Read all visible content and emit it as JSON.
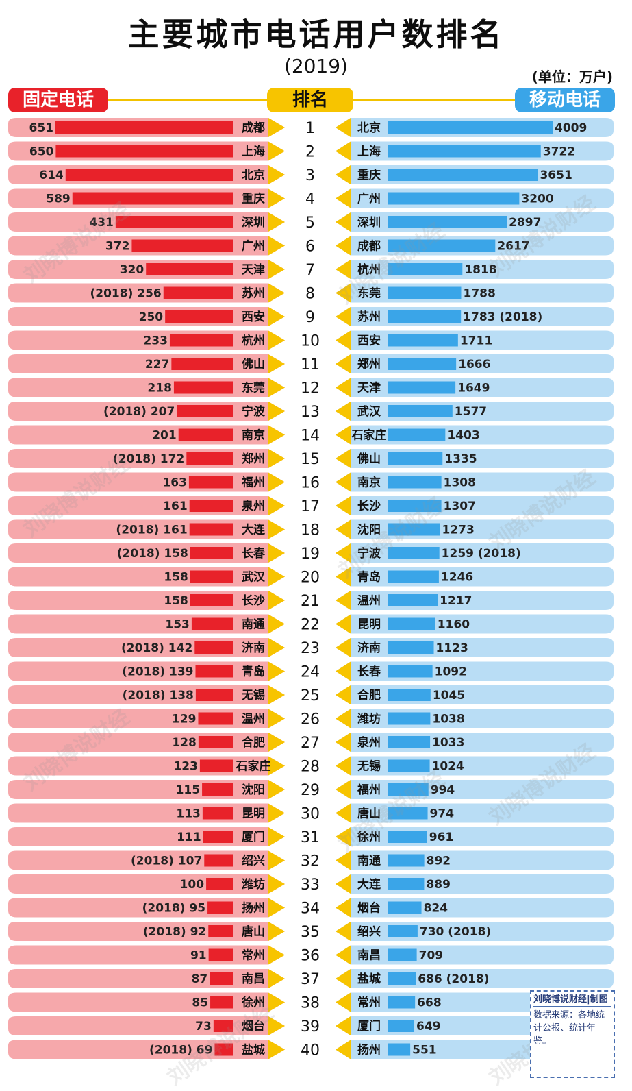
{
  "header": {
    "title": "主要城市电话用户数排名",
    "year": "(2019)",
    "unit": "(单位：万户)",
    "left_label": "固定电话",
    "mid_label": "排名",
    "right_label": "移动电话"
  },
  "colors": {
    "fixed_bar": "#e8222a",
    "fixed_row": "#f6a8ab",
    "mobile_bar": "#3aa5e8",
    "mobile_row": "#b9ddf5",
    "arrow": "#f7c400"
  },
  "watermark": "刘晓博说财经",
  "source": {
    "brand": "刘晓博说财经|制图",
    "text": "数据来源：各地统计公报、统计年鉴。"
  },
  "chart_data": {
    "type": "bar",
    "ranks": [
      1,
      2,
      3,
      4,
      5,
      6,
      7,
      8,
      9,
      10,
      11,
      12,
      13,
      14,
      15,
      16,
      17,
      18,
      19,
      20,
      21,
      22,
      23,
      24,
      25,
      26,
      27,
      28,
      29,
      30,
      31,
      32,
      33,
      34,
      35,
      36,
      37,
      38,
      39,
      40
    ],
    "series": [
      {
        "name": "固定电话",
        "cities": [
          "成都",
          "上海",
          "北京",
          "重庆",
          "深圳",
          "广州",
          "天津",
          "苏州",
          "西安",
          "杭州",
          "佛山",
          "东莞",
          "宁波",
          "南京",
          "郑州",
          "福州",
          "泉州",
          "大连",
          "长春",
          "武汉",
          "长沙",
          "南通",
          "济南",
          "青岛",
          "无锡",
          "温州",
          "合肥",
          "石家庄",
          "沈阳",
          "昆明",
          "厦门",
          "绍兴",
          "潍坊",
          "扬州",
          "唐山",
          "常州",
          "南昌",
          "徐州",
          "烟台",
          "盐城"
        ],
        "values": [
          651,
          650,
          614,
          589,
          431,
          372,
          320,
          256,
          250,
          233,
          227,
          218,
          207,
          201,
          172,
          163,
          161,
          161,
          158,
          158,
          158,
          153,
          142,
          139,
          138,
          129,
          128,
          123,
          115,
          113,
          111,
          107,
          100,
          95,
          92,
          91,
          87,
          85,
          73,
          69
        ],
        "labels": [
          "651",
          "650",
          "614",
          "589",
          "431",
          "372",
          "320",
          "(2018) 256",
          "250",
          "233",
          "227",
          "218",
          "(2018) 207",
          "201",
          "(2018) 172",
          "163",
          "161",
          "(2018) 161",
          "(2018) 158",
          "158",
          "158",
          "153",
          "(2018) 142",
          "(2018) 139",
          "(2018) 138",
          "129",
          "128",
          "123",
          "115",
          "113",
          "111",
          "(2018) 107",
          "100",
          "(2018) 95",
          "(2018) 92",
          "91",
          "87",
          "85",
          "73",
          "(2018) 69"
        ]
      },
      {
        "name": "移动电话",
        "cities": [
          "北京",
          "上海",
          "重庆",
          "广州",
          "深圳",
          "成都",
          "杭州",
          "东莞",
          "苏州",
          "西安",
          "郑州",
          "天津",
          "武汉",
          "石家庄",
          "佛山",
          "南京",
          "长沙",
          "沈阳",
          "宁波",
          "青岛",
          "温州",
          "昆明",
          "济南",
          "长春",
          "合肥",
          "潍坊",
          "泉州",
          "无锡",
          "福州",
          "唐山",
          "徐州",
          "南通",
          "大连",
          "烟台",
          "绍兴",
          "南昌",
          "盐城",
          "常州",
          "厦门",
          "扬州"
        ],
        "values": [
          4009,
          3722,
          3651,
          3200,
          2897,
          2617,
          1818,
          1788,
          1783,
          1711,
          1666,
          1649,
          1577,
          1403,
          1335,
          1308,
          1307,
          1273,
          1259,
          1246,
          1217,
          1160,
          1123,
          1092,
          1045,
          1038,
          1033,
          1024,
          994,
          974,
          961,
          892,
          889,
          824,
          730,
          709,
          686,
          668,
          649,
          551
        ],
        "labels": [
          "4009",
          "3722",
          "3651",
          "3200",
          "2897",
          "2617",
          "1818",
          "1788",
          "1783 (2018)",
          "1711",
          "1666",
          "1649",
          "1577",
          "1403",
          "1335",
          "1308",
          "1307",
          "1273",
          "1259 (2018)",
          "1246",
          "1217",
          "1160",
          "1123",
          "1092",
          "1045",
          "1038",
          "1033",
          "1024",
          "994",
          "974",
          "961",
          "892",
          "889",
          "824",
          "730 (2018)",
          "709",
          "686 (2018)",
          "668",
          "649",
          "551"
        ]
      }
    ]
  }
}
